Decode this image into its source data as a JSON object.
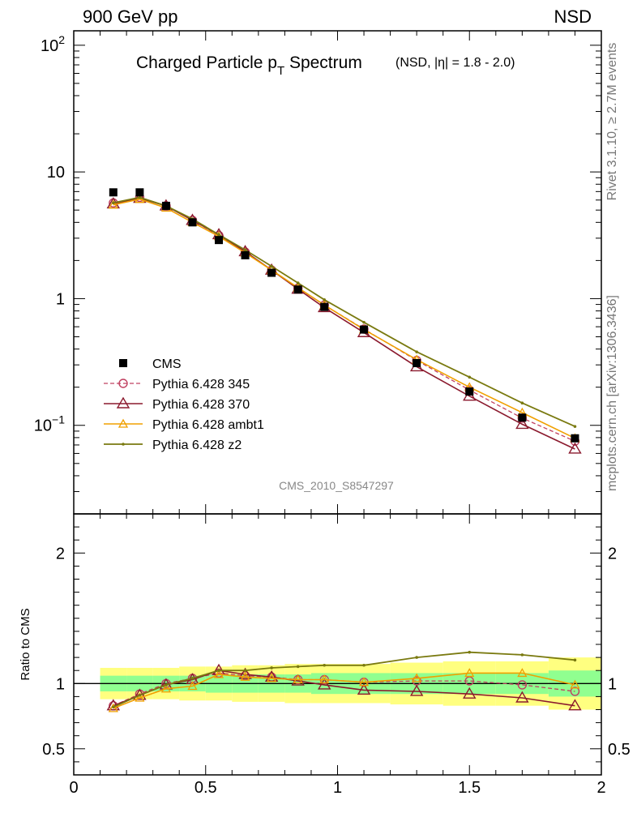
{
  "header": {
    "left": "900 GeV pp",
    "right": "NSD"
  },
  "side_labels": {
    "rivet": "Rivet 3.1.10, ≥ 2.7M events",
    "mcplots": "mcplots.cern.ch [arXiv:1306.3436]"
  },
  "colors": {
    "cms": "#000000",
    "p345": "#c04060",
    "p370": "#8b1a2e",
    "ambt1": "#f0a000",
    "z2": "#7a7a10",
    "band_outer": "#ffff80",
    "band_inner": "#90ff90"
  },
  "chart_data": [
    {
      "type": "line",
      "title": "Charged Particle p",
      "title_sub": "T",
      "title_rest": " Spectrum",
      "title_note": "(NSD, |η| = 1.8 - 2.0)",
      "watermark": "CMS_2010_S8547297",
      "xlim": [
        0,
        2
      ],
      "ylim": [
        0.02,
        130
      ],
      "log_y": true,
      "y_ticks": [
        {
          "value": 100,
          "label": "10",
          "sup": "2"
        },
        {
          "value": 10,
          "label": "10",
          "sup": ""
        },
        {
          "value": 1,
          "label": "1",
          "sup": ""
        },
        {
          "value": 0.1,
          "label": "10",
          "sup": "−1"
        }
      ],
      "legend": [
        {
          "key": "cms",
          "label": "CMS"
        },
        {
          "key": "p345",
          "label": "Pythia 6.428 345"
        },
        {
          "key": "p370",
          "label": "Pythia 6.428 370"
        },
        {
          "key": "ambt1",
          "label": "Pythia 6.428 ambt1"
        },
        {
          "key": "z2",
          "label": "Pythia 6.428 z2"
        }
      ],
      "x": [
        0.15,
        0.25,
        0.35,
        0.45,
        0.55,
        0.65,
        0.75,
        0.85,
        0.95,
        1.1,
        1.3,
        1.5,
        1.7,
        1.9
      ],
      "series": [
        {
          "name": "CMS",
          "key": "cms",
          "values": [
            6.9,
            6.9,
            5.4,
            4.0,
            2.9,
            2.2,
            1.6,
            1.18,
            0.86,
            0.57,
            0.31,
            0.185,
            0.115,
            0.079
          ]
        },
        {
          "name": "Pythia 6.428 345",
          "key": "p345",
          "values": [
            5.7,
            6.3,
            5.4,
            4.15,
            3.15,
            2.33,
            1.68,
            1.21,
            0.89,
            0.575,
            0.325,
            0.19,
            0.114,
            0.075
          ]
        },
        {
          "name": "Pythia 6.428 370",
          "key": "p370",
          "values": [
            5.6,
            6.2,
            5.4,
            4.15,
            3.2,
            2.35,
            1.68,
            1.19,
            0.85,
            0.54,
            0.29,
            0.17,
            0.102,
            0.065
          ]
        },
        {
          "name": "Pythia 6.428 ambt1",
          "key": "ambt1",
          "values": [
            5.5,
            6.1,
            5.2,
            4.0,
            3.1,
            2.3,
            1.68,
            1.22,
            0.89,
            0.57,
            0.33,
            0.2,
            0.126,
            0.079
          ]
        },
        {
          "name": "Pythia 6.428 z2",
          "key": "z2",
          "values": [
            5.7,
            6.3,
            5.4,
            4.25,
            3.2,
            2.42,
            1.8,
            1.33,
            0.98,
            0.65,
            0.38,
            0.24,
            0.15,
            0.098
          ]
        }
      ]
    },
    {
      "type": "line",
      "ylabel": "Ratio to CMS",
      "xlim": [
        0,
        2
      ],
      "ylim": [
        0.3,
        2.3
      ],
      "y_ticks": [
        0.5,
        1,
        2
      ],
      "x_ticks": [
        0,
        0.5,
        1,
        1.5,
        2
      ],
      "x_tick_labels": [
        "0",
        "0.5",
        "1",
        "1.5",
        "2"
      ],
      "bins": [
        [
          0.1,
          0.2
        ],
        [
          0.2,
          0.3
        ],
        [
          0.3,
          0.4
        ],
        [
          0.4,
          0.5
        ],
        [
          0.5,
          0.6
        ],
        [
          0.6,
          0.7
        ],
        [
          0.7,
          0.8
        ],
        [
          0.8,
          0.9
        ],
        [
          0.9,
          1.0
        ],
        [
          1.0,
          1.2
        ],
        [
          1.2,
          1.4
        ],
        [
          1.4,
          1.6
        ],
        [
          1.6,
          1.8
        ],
        [
          1.8,
          2.0
        ]
      ],
      "band_outer": [
        0.12,
        0.12,
        0.12,
        0.13,
        0.13,
        0.14,
        0.14,
        0.15,
        0.15,
        0.15,
        0.16,
        0.17,
        0.17,
        0.2
      ],
      "band_inner": [
        0.06,
        0.06,
        0.06,
        0.06,
        0.07,
        0.07,
        0.07,
        0.07,
        0.08,
        0.08,
        0.08,
        0.08,
        0.08,
        0.1
      ],
      "x": [
        0.15,
        0.25,
        0.35,
        0.45,
        0.55,
        0.65,
        0.75,
        0.85,
        0.95,
        1.1,
        1.3,
        1.5,
        1.7,
        1.9
      ],
      "series": [
        {
          "name": "Pythia 6.428 345",
          "key": "p345",
          "values": [
            0.83,
            0.92,
            1.0,
            1.04,
            1.08,
            1.06,
            1.05,
            1.03,
            1.03,
            1.01,
            1.02,
            1.02,
            0.99,
            0.94
          ]
        },
        {
          "name": "Pythia 6.428 370",
          "key": "p370",
          "values": [
            0.83,
            0.91,
            0.99,
            1.03,
            1.1,
            1.07,
            1.05,
            1.02,
            0.99,
            0.95,
            0.94,
            0.92,
            0.89,
            0.83
          ]
        },
        {
          "name": "Pythia 6.428 ambt1",
          "key": "ambt1",
          "values": [
            0.81,
            0.89,
            0.96,
            0.98,
            1.07,
            1.05,
            1.04,
            1.03,
            1.03,
            1.01,
            1.04,
            1.08,
            1.08,
            0.99
          ]
        },
        {
          "name": "Pythia 6.428 z2",
          "key": "z2",
          "values": [
            0.82,
            0.91,
            0.99,
            1.04,
            1.1,
            1.1,
            1.12,
            1.13,
            1.14,
            1.14,
            1.2,
            1.24,
            1.22,
            1.18
          ]
        }
      ]
    }
  ]
}
